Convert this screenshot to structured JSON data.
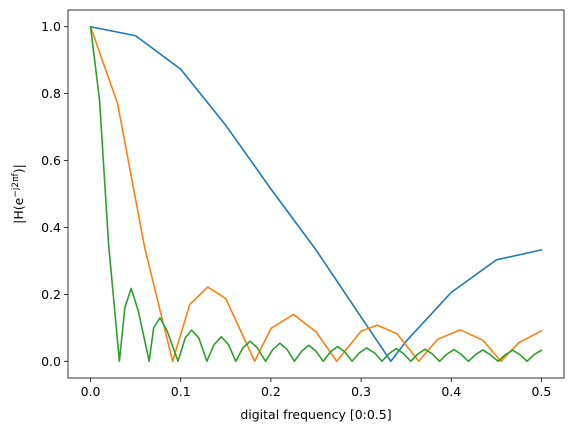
{
  "chart_data": {
    "type": "line",
    "title": "",
    "xlabel": "digital frequency [0:0.5]",
    "ylabel": "|H(e^{-j2πf})|",
    "ylabel_parts": {
      "pre": "|H(e",
      "sup": "−j2πf",
      "post": ")|"
    },
    "xlim": [
      -0.025,
      0.525
    ],
    "ylim": [
      -0.05,
      1.05
    ],
    "x_ticks": [
      0.0,
      0.1,
      0.2,
      0.3,
      0.4,
      0.5
    ],
    "x_tick_labels": [
      "0.0",
      "0.1",
      "0.2",
      "0.3",
      "0.4",
      "0.5"
    ],
    "y_ticks": [
      0.0,
      0.2,
      0.4,
      0.6,
      0.8,
      1.0
    ],
    "y_tick_labels": [
      "0.0",
      "0.2",
      "0.4",
      "0.6",
      "0.8",
      "1.0"
    ],
    "grid": false,
    "legend": "none",
    "series": [
      {
        "color": "#1f77b4",
        "x": [
          0.0,
          0.05,
          0.1,
          0.15,
          0.2,
          0.25,
          0.3,
          0.333,
          0.35,
          0.4,
          0.45,
          0.5
        ],
        "y": [
          1.0,
          0.973,
          0.873,
          0.705,
          0.515,
          0.333,
          0.132,
          0.0,
          0.06,
          0.206,
          0.303,
          0.333
        ]
      },
      {
        "color": "#ff7f0e",
        "x": [
          0.0,
          0.03,
          0.06,
          0.091,
          0.11,
          0.13,
          0.15,
          0.182,
          0.2,
          0.225,
          0.25,
          0.273,
          0.3,
          0.318,
          0.34,
          0.364,
          0.385,
          0.41,
          0.435,
          0.455,
          0.475,
          0.5
        ],
        "y": [
          1.0,
          0.77,
          0.34,
          0.0,
          0.17,
          0.222,
          0.187,
          0.0,
          0.098,
          0.14,
          0.088,
          0.0,
          0.09,
          0.108,
          0.082,
          0.0,
          0.066,
          0.094,
          0.063,
          0.0,
          0.056,
          0.091
        ]
      },
      {
        "color": "#2ca02c",
        "x": [
          0.0,
          0.01,
          0.02,
          0.032,
          0.038,
          0.045,
          0.053,
          0.065,
          0.07,
          0.077,
          0.085,
          0.097,
          0.105,
          0.112,
          0.12,
          0.129,
          0.137,
          0.145,
          0.153,
          0.161,
          0.169,
          0.177,
          0.185,
          0.194,
          0.202,
          0.21,
          0.218,
          0.226,
          0.234,
          0.242,
          0.25,
          0.258,
          0.266,
          0.274,
          0.282,
          0.29,
          0.298,
          0.306,
          0.315,
          0.323,
          0.331,
          0.339,
          0.347,
          0.355,
          0.363,
          0.371,
          0.379,
          0.387,
          0.395,
          0.403,
          0.411,
          0.419,
          0.427,
          0.435,
          0.443,
          0.452,
          0.46,
          0.468,
          0.476,
          0.484,
          0.492,
          0.5
        ],
        "y": [
          1.0,
          0.78,
          0.35,
          0.0,
          0.16,
          0.218,
          0.15,
          0.0,
          0.1,
          0.13,
          0.09,
          0.0,
          0.07,
          0.093,
          0.07,
          0.0,
          0.05,
          0.073,
          0.05,
          0.0,
          0.04,
          0.06,
          0.04,
          0.0,
          0.035,
          0.054,
          0.035,
          0.0,
          0.03,
          0.048,
          0.03,
          0.0,
          0.028,
          0.044,
          0.028,
          0.0,
          0.025,
          0.04,
          0.025,
          0.0,
          0.023,
          0.038,
          0.023,
          0.0,
          0.022,
          0.036,
          0.022,
          0.0,
          0.021,
          0.035,
          0.021,
          0.0,
          0.02,
          0.034,
          0.02,
          0.0,
          0.02,
          0.033,
          0.02,
          0.0,
          0.02,
          0.033
        ]
      }
    ]
  }
}
